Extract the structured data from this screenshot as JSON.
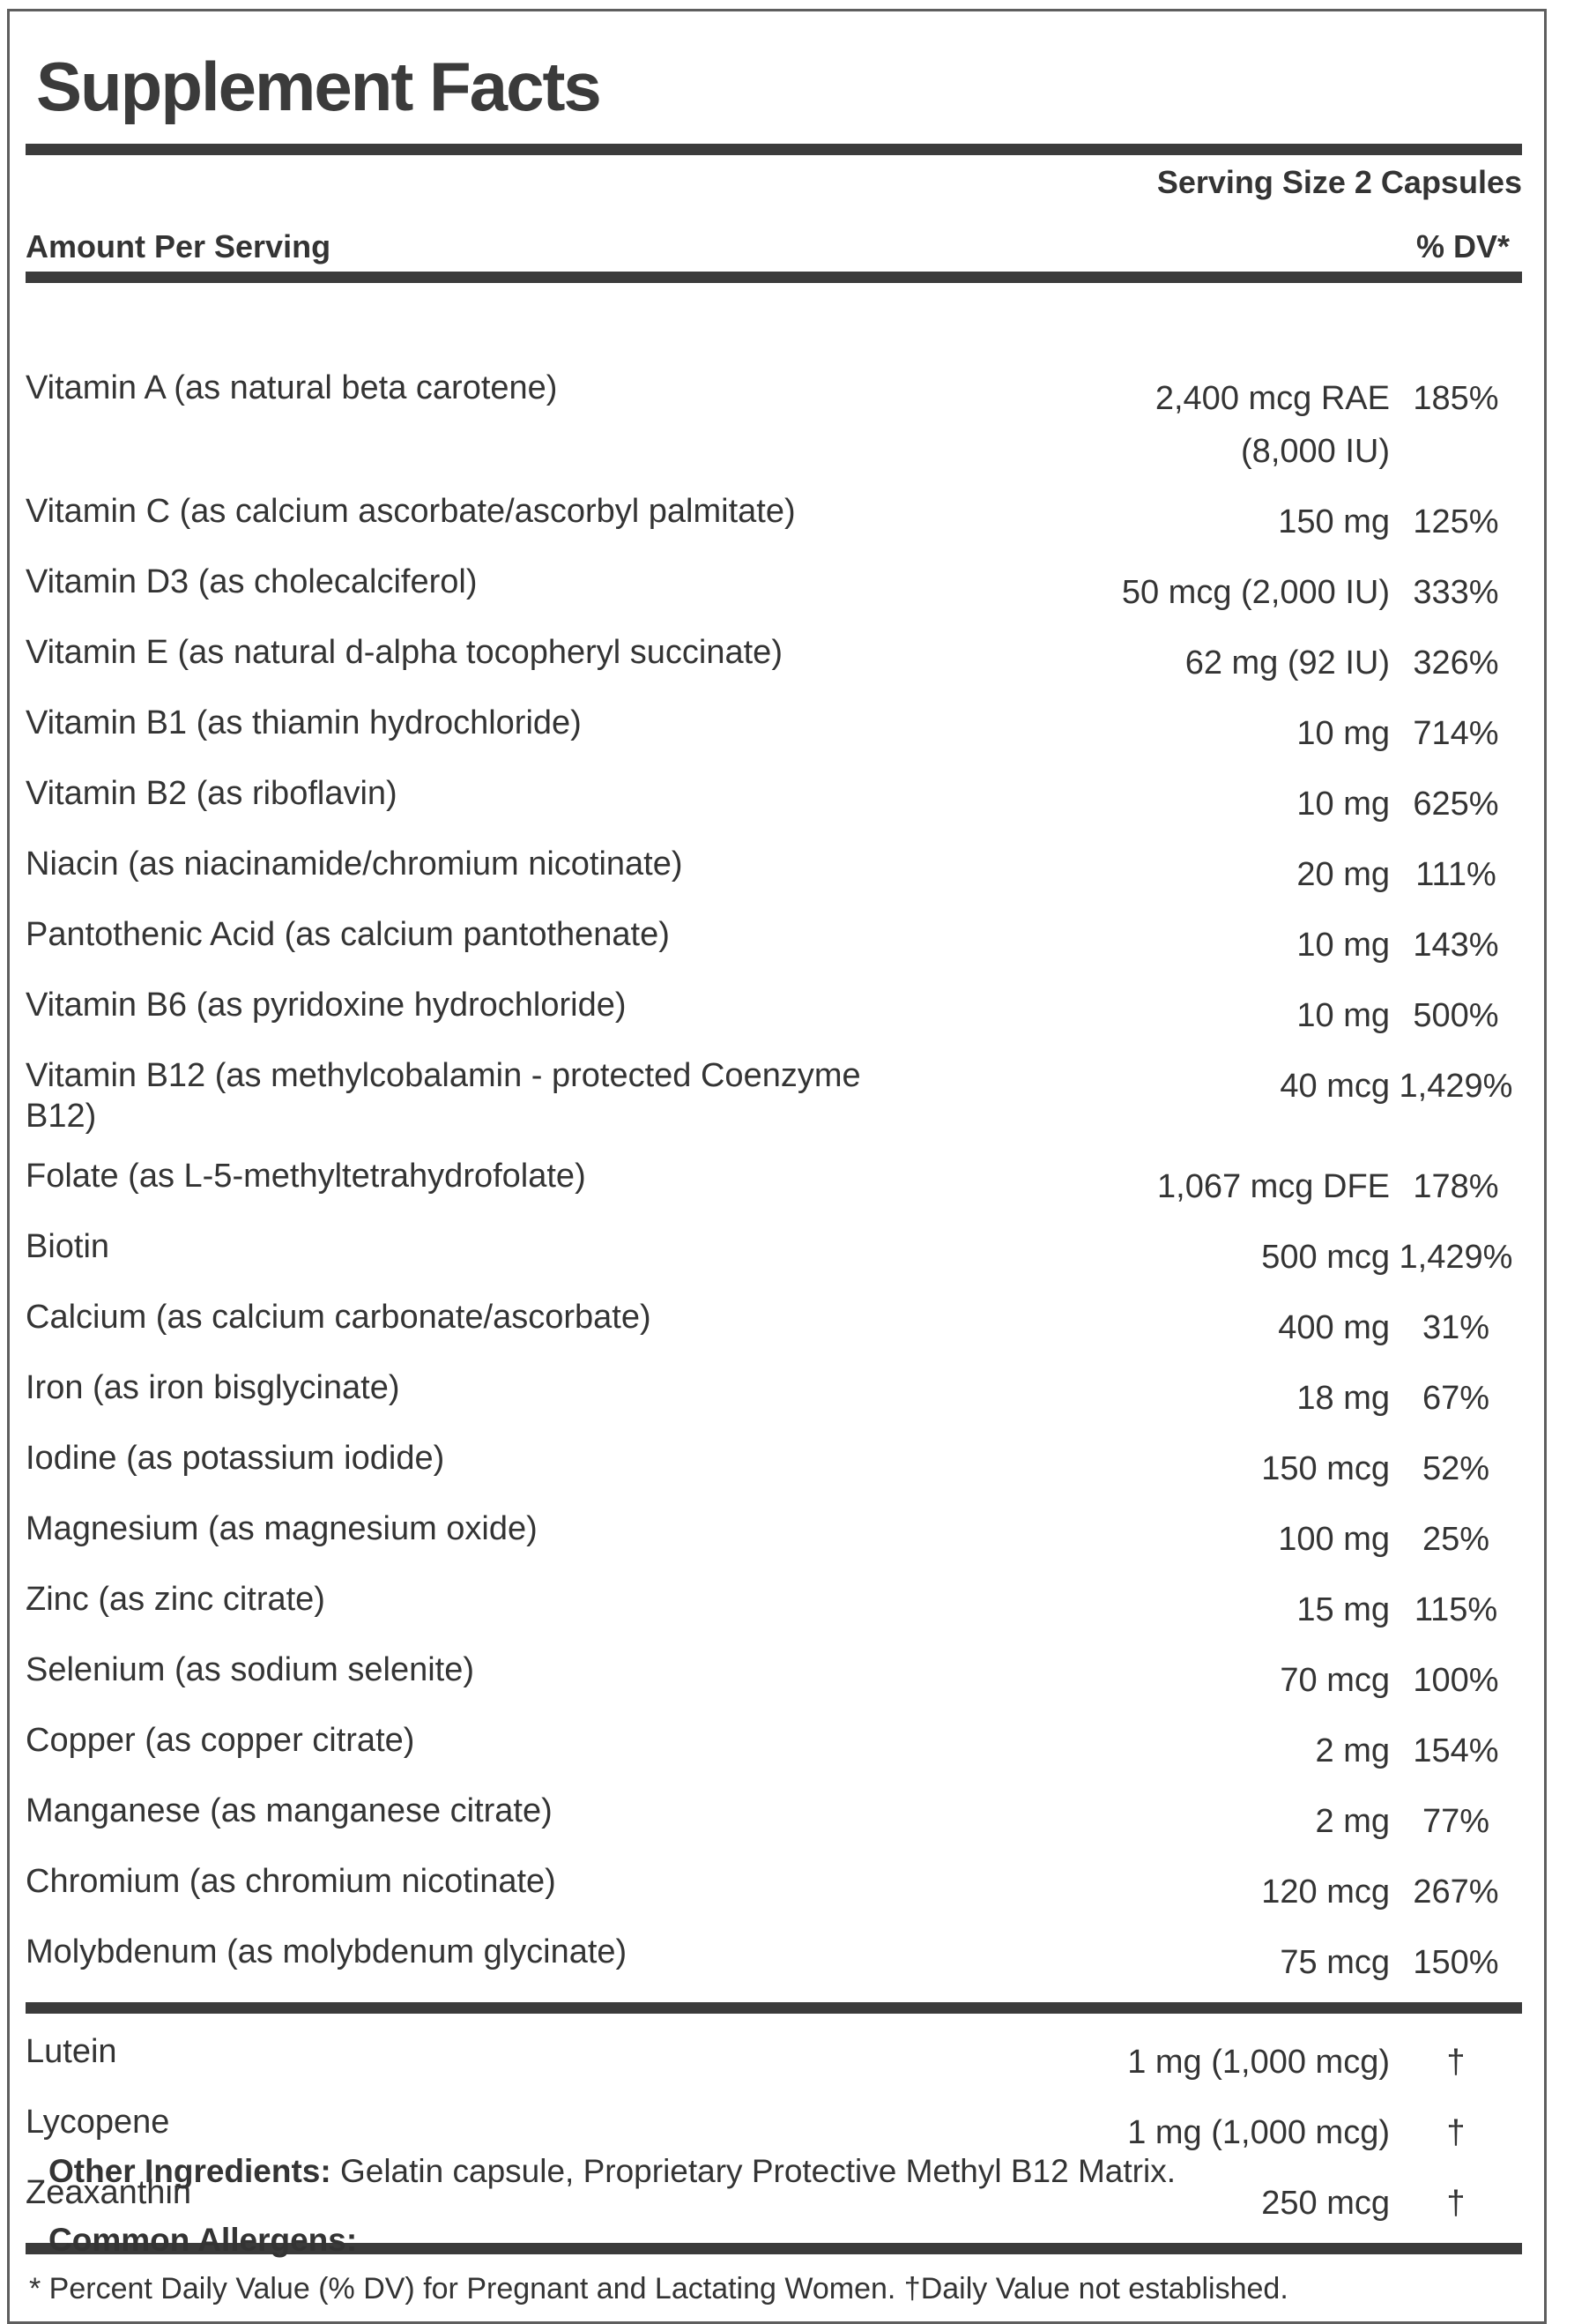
{
  "title": "Supplement Facts",
  "serving": {
    "size_label": "Serving Size 2 Capsules"
  },
  "columns": {
    "amount_header": "Amount Per Serving",
    "dv_header": "% DV*"
  },
  "rows": [
    {
      "name": "Vitamin A (as natural beta carotene)",
      "amount": "2,400 mcg RAE",
      "amount2": "(8,000 IU)",
      "dv": "185%"
    },
    {
      "name": "Vitamin C (as calcium ascorbate/ascorbyl palmitate)",
      "amount": "150 mg",
      "amount2": "",
      "dv": "125%"
    },
    {
      "name": "Vitamin D3 (as cholecalciferol)",
      "amount": "50 mcg (2,000 IU)",
      "amount2": "",
      "dv": "333%"
    },
    {
      "name": "Vitamin E (as natural d-alpha tocopheryl succinate)",
      "amount": "62 mg (92 IU)",
      "amount2": "",
      "dv": "326%"
    },
    {
      "name": "Vitamin B1 (as thiamin hydrochloride)",
      "amount": "10 mg",
      "amount2": "",
      "dv": "714%"
    },
    {
      "name": "Vitamin B2 (as riboflavin)",
      "amount": "10 mg",
      "amount2": "",
      "dv": "625%"
    },
    {
      "name": "Niacin (as niacinamide/chromium nicotinate)",
      "amount": "20 mg",
      "amount2": "",
      "dv": "111%"
    },
    {
      "name": "Pantothenic Acid (as calcium pantothenate)",
      "amount": "10 mg",
      "amount2": "",
      "dv": "143%"
    },
    {
      "name": "Vitamin B6 (as pyridoxine hydrochloride)",
      "amount": "10 mg",
      "amount2": "",
      "dv": "500%"
    },
    {
      "name": "Vitamin B12 (as methylcobalamin - protected Coenzyme B12)",
      "amount": "40 mcg",
      "amount2": "",
      "dv": "1,429%"
    },
    {
      "name": "Folate (as L-5-methyltetrahydrofolate)",
      "amount": "1,067 mcg DFE",
      "amount2": "",
      "dv": "178%"
    },
    {
      "name": "Biotin",
      "amount": "500 mcg",
      "amount2": "",
      "dv": "1,429%"
    },
    {
      "name": "Calcium (as calcium carbonate/ascorbate)",
      "amount": "400 mg",
      "amount2": "",
      "dv": "31%"
    },
    {
      "name": "Iron (as iron bisglycinate)",
      "amount": "18 mg",
      "amount2": "",
      "dv": "67%"
    },
    {
      "name": "Iodine (as potassium iodide)",
      "amount": "150 mcg",
      "amount2": "",
      "dv": "52%"
    },
    {
      "name": "Magnesium (as magnesium oxide)",
      "amount": "100 mg",
      "amount2": "",
      "dv": "25%"
    },
    {
      "name": "Zinc (as zinc citrate)",
      "amount": "15 mg",
      "amount2": "",
      "dv": "115%"
    },
    {
      "name": "Selenium (as sodium selenite)",
      "amount": "70 mcg",
      "amount2": "",
      "dv": "100%"
    },
    {
      "name": "Copper (as copper citrate)",
      "amount": "2 mg",
      "amount2": "",
      "dv": "154%"
    },
    {
      "name": "Manganese (as manganese citrate)",
      "amount": "2 mg",
      "amount2": "",
      "dv": "77%"
    },
    {
      "name": "Chromium (as chromium nicotinate)",
      "amount": "120 mcg",
      "amount2": "",
      "dv": "267%"
    },
    {
      "name": "Molybdenum (as molybdenum glycinate)",
      "amount": "75 mcg",
      "amount2": "",
      "dv": "150%"
    }
  ],
  "extra_rows": [
    {
      "name": "Lutein",
      "amount": "1 mg (1,000 mcg)",
      "amount2": "",
      "dv": "†"
    },
    {
      "name": "Lycopene",
      "amount": "1 mg (1,000 mcg)",
      "amount2": "",
      "dv": "†"
    },
    {
      "name": "Zeaxanthin",
      "amount": "250 mcg",
      "amount2": "",
      "dv": "†"
    }
  ],
  "footnote": "* Percent Daily Value (% DV) for Pregnant and Lactating Women. †Daily Value not established.",
  "other_ingredients": {
    "label": "Other Ingredients:",
    "text": "Gelatin capsule, Proprietary Protective Methyl B12 Matrix."
  },
  "allergens": {
    "label": "Common Allergens:"
  },
  "colors": {
    "text": "#343434",
    "bar": "#3b3b3b",
    "border": "#5e5e5e",
    "background": "#ffffff"
  }
}
